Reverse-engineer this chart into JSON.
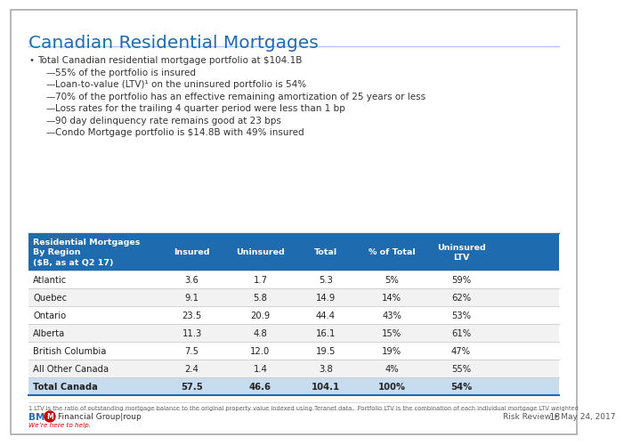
{
  "title": "Canadian Residential Mortgages",
  "title_color": "#1F6BB0",
  "bg_color": "#FFFFFF",
  "bullet_main": "Total Canadian residential mortgage portfolio at $104.1B",
  "bullets": [
    "55% of the portfolio is insured",
    "Loan-to-value (LTV)¹ on the uninsured portfolio is 54%",
    "70% of the portfolio has an effective remaining amortization of 25 years or less",
    "Loss rates for the trailing 4 quarter period were less than 1 bp",
    "90 day delinquency rate remains good at 23 bps",
    "Condo Mortgage portfolio is $14.8B with 49% insured"
  ],
  "table_header_bg": "#1F6BB0",
  "table_header_text": "#FFFFFF",
  "table_total_bg": "#C8DCF0",
  "table_row_bg_odd": "#FFFFFF",
  "table_row_bg_even": "#F2F2F2",
  "table_divider": "#CCCCCC",
  "col_headers": [
    "Residential Mortgages\nBy Region\n($B, as at Q2 17)",
    "Insured",
    "Uninsured",
    "Total",
    "% of Total",
    "Uninsured\nLTV"
  ],
  "rows": [
    [
      "Atlantic",
      "3.6",
      "1.7",
      "5.3",
      "5%",
      "59%"
    ],
    [
      "Quebec",
      "9.1",
      "5.8",
      "14.9",
      "14%",
      "62%"
    ],
    [
      "Ontario",
      "23.5",
      "20.9",
      "44.4",
      "43%",
      "53%"
    ],
    [
      "Alberta",
      "11.3",
      "4.8",
      "16.1",
      "15%",
      "61%"
    ],
    [
      "British Columbia",
      "7.5",
      "12.0",
      "19.5",
      "19%",
      "47%"
    ],
    [
      "All Other Canada",
      "2.4",
      "1.4",
      "3.8",
      "4%",
      "55%"
    ],
    [
      "Total Canada",
      "57.5",
      "46.6",
      "104.1",
      "100%",
      "54%"
    ]
  ],
  "footnote": "1 LTV is the ratio of outstanding mortgage balance to the original property value indexed using Teranet data.  Portfolio LTV is the combination of each individual mortgage LTV weighted by the mortgage balance",
  "footer_right": "Risk Review • May 24, 2017",
  "page_number": "18",
  "bmo_red": "#CC0000",
  "bmo_blue": "#1F6BB0",
  "outer_border": "#AAAAAA"
}
